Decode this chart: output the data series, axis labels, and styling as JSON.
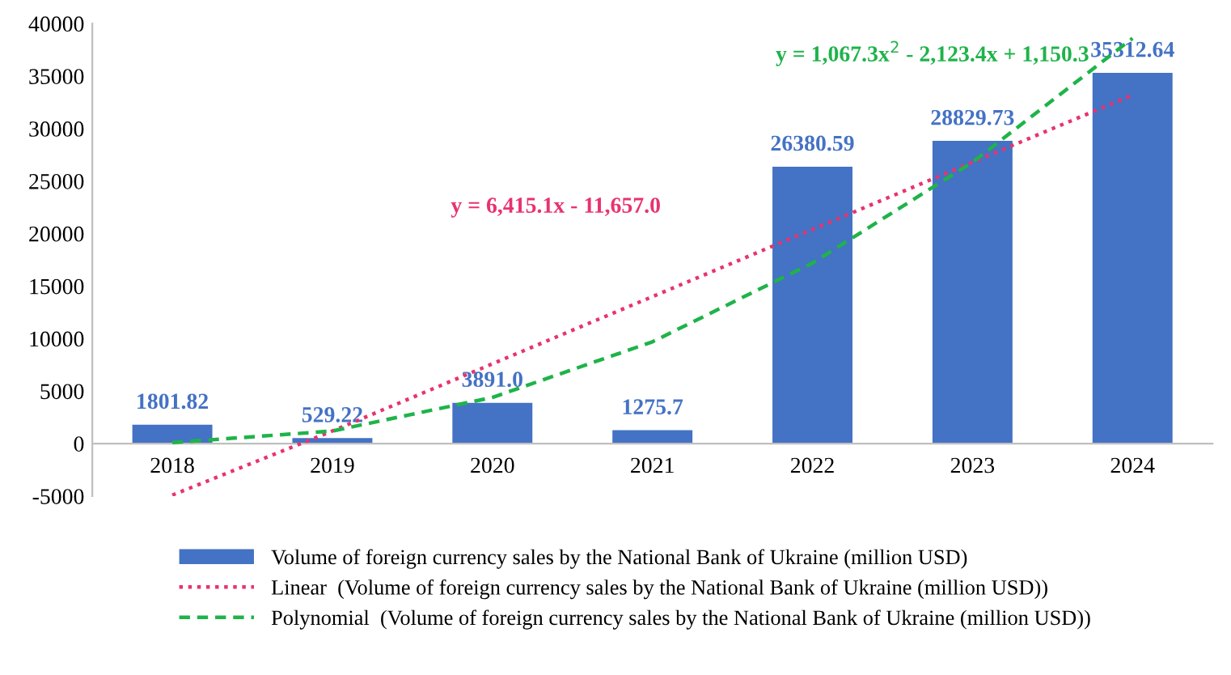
{
  "chart_data": {
    "type": "bar",
    "categories": [
      "2018",
      "2019",
      "2020",
      "2021",
      "2022",
      "2023",
      "2024"
    ],
    "series": [
      {
        "name": "Volume of foreign currency sales by the National Bank of Ukraine (million USD)",
        "color": "#4472c4",
        "values": [
          1801.82,
          529.22,
          3891,
          1275.7,
          26380.59,
          28829.73,
          35312.64
        ],
        "value_labels": [
          "1801.82",
          "529.22",
          "3891.0",
          "1275.7",
          "26380.59",
          "28829.73",
          "35312.64"
        ]
      },
      {
        "name": "Linear  (Volume of foreign currency sales by the National Bank of Ukraine (million USD))",
        "type": "line",
        "color": "#e8336e",
        "line_style": "dotted",
        "values": [
          -4900,
          1200,
          7600,
          14000,
          20400,
          26800,
          33200
        ]
      },
      {
        "name": "Polynomial  (Volume of foreign currency sales by the National Bank of Ukraine (million USD))",
        "type": "line",
        "color": "#1fb34a",
        "line_style": "dashed",
        "values": [
          100,
          1200,
          4400,
          9700,
          17200,
          26800,
          38600
        ]
      }
    ],
    "annotations": [
      "y = 6,415.1x - 11,657.0",
      "y = 1,067.3x$^{2}$ - 2,123.4x + 1,150.3"
    ],
    "ylim": [
      -5000,
      40000
    ],
    "yticks": [
      -5000,
      0,
      5000,
      10000,
      15000,
      20000,
      25000,
      30000,
      35000,
      40000
    ],
    "grid": false,
    "legend": "bottom",
    "marker": "none"
  }
}
